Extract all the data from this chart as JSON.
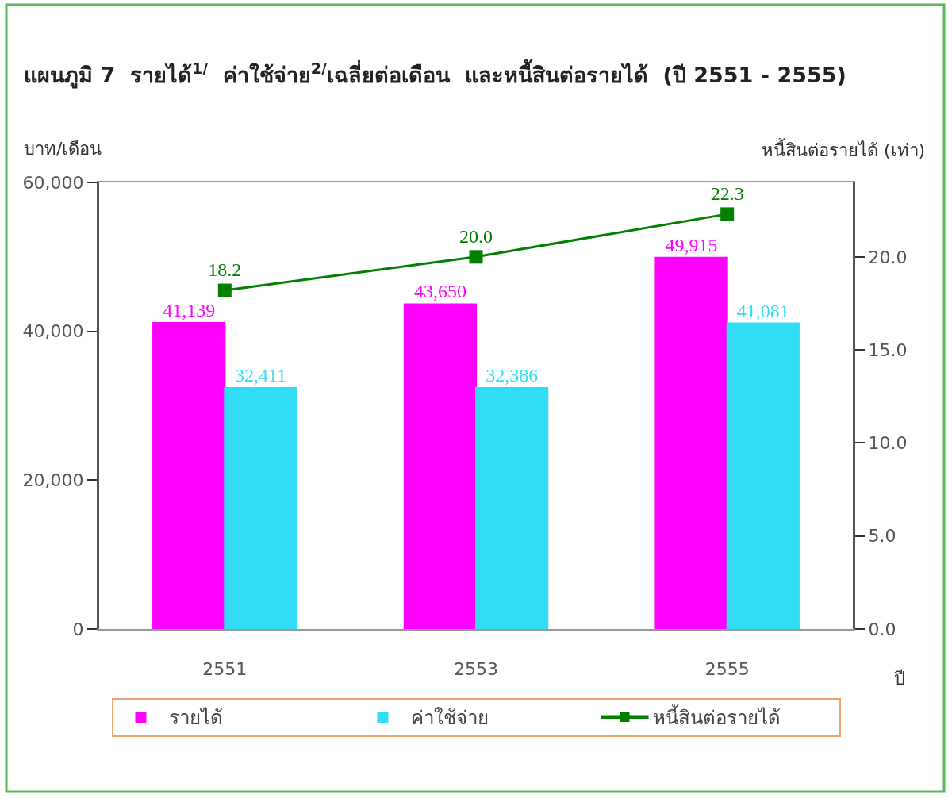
{
  "chart_data": {
    "type": "bar",
    "title": "แผนภูมิ 7  รายได้$^{1/}$  ค่าใช้จ่าย$^{2/}$เฉลี่ยต่อเดือน  และหนี้สินต่อรายได้  (ปี 2551 - 2555)",
    "xlabel": "ปี",
    "ylabel": "บาท/เดือน",
    "y2label": "หนี้สินต่อรายได้ (เท่า)",
    "categories": [
      "2551",
      "2553",
      "2555"
    ],
    "series": [
      {
        "name": "รายได้",
        "color": "#ff00ff",
        "values": [
          41139,
          43650,
          49915
        ],
        "value_labels": [
          "41,139",
          "43,650",
          "49,915"
        ]
      },
      {
        "name": "ค่าใช้จ่าย",
        "color": "#33dcf5",
        "values": [
          32411,
          32386,
          41081
        ],
        "value_labels": [
          "32,411",
          "32,386",
          "41,081"
        ]
      },
      {
        "name": "หนี้สินต่อรายได้",
        "type": "line",
        "axis": "y2",
        "color": "#007f00",
        "values": [
          18.2,
          20.0,
          22.3
        ],
        "value_labels": [
          "18.2",
          "20.0",
          "22.3"
        ]
      }
    ],
    "ylim": [
      0,
      60000
    ],
    "yticks": [
      0,
      {
        "value": 20000,
        "label": "20,000"
      },
      {
        "value": 40000,
        "label": "40,000"
      },
      {
        "value": 60000,
        "label": "60,000"
      }
    ],
    "y2lim": [
      0,
      24
    ],
    "y2ticks": [
      {
        "value": 0,
        "label": "0.0"
      },
      {
        "value": 5,
        "label": "5.0"
      },
      {
        "value": 10,
        "label": "10.0"
      },
      {
        "value": 15,
        "label": "15.0"
      },
      {
        "value": 20,
        "label": "20.0"
      }
    ],
    "legend": "bottom",
    "marker": "square"
  }
}
